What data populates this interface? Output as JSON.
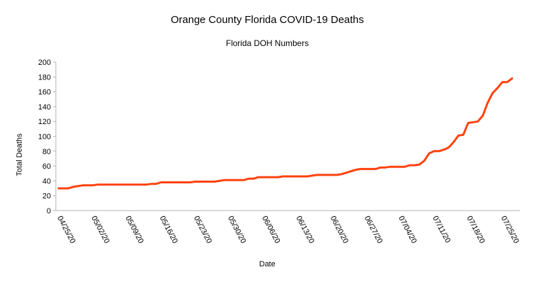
{
  "chart_data": {
    "type": "line",
    "title": "Orange County Florida COVID-19 Deaths",
    "subtitle": "Florida DOH Numbers",
    "x_label": "Date",
    "y_label": "Total Deaths",
    "categories": [
      "04/25/20",
      null,
      null,
      null,
      null,
      null,
      null,
      "05/02/20",
      null,
      null,
      null,
      null,
      null,
      null,
      "05/09/20",
      null,
      null,
      null,
      null,
      null,
      null,
      "05/16/20",
      null,
      null,
      null,
      null,
      null,
      null,
      "05/23/20",
      null,
      null,
      null,
      null,
      null,
      null,
      "05/30/20",
      null,
      null,
      null,
      null,
      null,
      null,
      "06/06/20",
      null,
      null,
      null,
      null,
      null,
      null,
      "06/13/20",
      null,
      null,
      null,
      null,
      null,
      null,
      "06/20/20",
      null,
      null,
      null,
      null,
      null,
      null,
      "06/27/20",
      null,
      null,
      null,
      null,
      null,
      null,
      "07/04/20",
      null,
      null,
      null,
      null,
      null,
      null,
      "07/11/20",
      null,
      null,
      null,
      null,
      null,
      null,
      "07/18/20",
      null,
      null,
      null,
      null,
      null,
      null,
      "07/25/20",
      null,
      null
    ],
    "series": [
      {
        "name": "Total Deaths",
        "color": "#ff420e",
        "values": [
          30,
          30,
          30,
          32,
          33,
          34,
          34,
          34,
          35,
          35,
          35,
          35,
          35,
          35,
          35,
          35,
          35,
          35,
          35,
          36,
          36,
          38,
          38,
          38,
          38,
          38,
          38,
          38,
          39,
          39,
          39,
          39,
          39,
          40,
          41,
          41,
          41,
          41,
          41,
          43,
          43,
          45,
          45,
          45,
          45,
          45,
          46,
          46,
          46,
          46,
          46,
          46,
          47,
          48,
          48,
          48,
          48,
          48,
          49,
          51,
          53,
          55,
          56,
          56,
          56,
          56,
          58,
          58,
          59,
          59,
          59,
          59,
          61,
          61,
          62,
          67,
          77,
          80,
          80,
          82,
          85,
          92,
          101,
          102,
          118,
          119,
          120,
          128,
          145,
          158,
          165,
          173,
          173,
          178
        ]
      }
    ],
    "ylim": [
      0,
      200
    ],
    "yticks": [
      0,
      20,
      40,
      60,
      80,
      100,
      120,
      140,
      160,
      180,
      200
    ],
    "grid": false
  }
}
